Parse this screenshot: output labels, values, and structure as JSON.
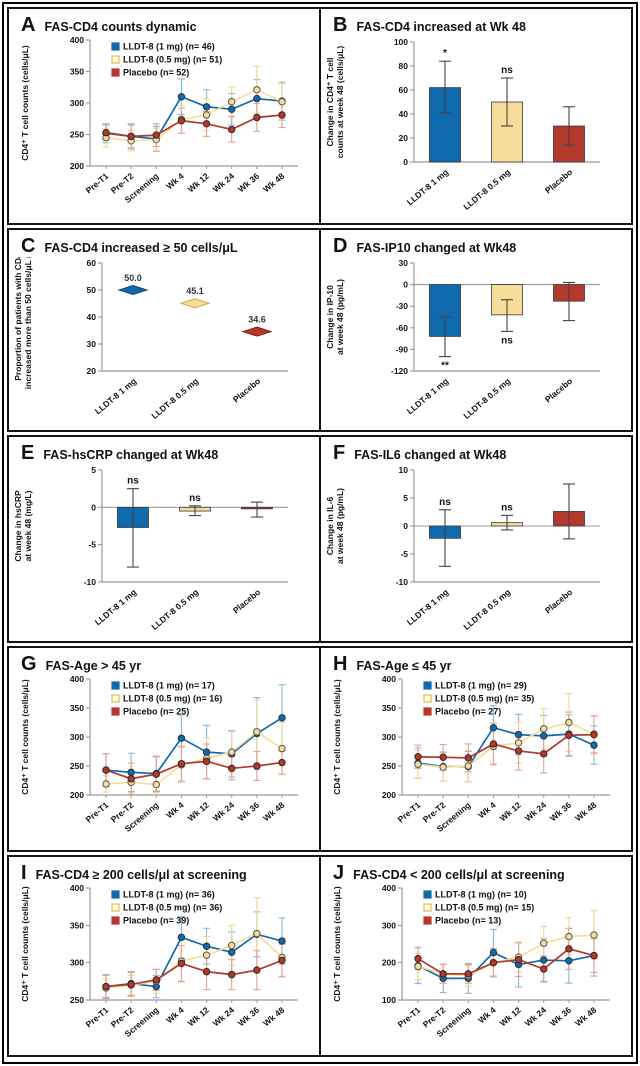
{
  "panels": [
    {
      "letter": "A",
      "title": "FAS-CD4 counts dynamic"
    },
    {
      "letter": "B",
      "title": "FAS-CD4 increased at Wk 48"
    },
    {
      "letter": "C",
      "title": "FAS-CD4 increased ≥ 50 cells/μL"
    },
    {
      "letter": "D",
      "title": "FAS-IP10 changed at Wk48"
    },
    {
      "letter": "E",
      "title": "FAS-hsCRP changed at Wk48"
    },
    {
      "letter": "F",
      "title": "FAS-IL6 changed at Wk48"
    },
    {
      "letter": "G",
      "title": "FAS-Age > 45 yr"
    },
    {
      "letter": "H",
      "title": "FAS-Age ≤ 45 yr"
    },
    {
      "letter": "I",
      "title": "FAS-CD4 ≥ 200 cells/μl at screening"
    },
    {
      "letter": "J",
      "title": "FAS-CD4 < 200 cells/μl at screening"
    }
  ],
  "colors": {
    "blue": "#0f6bae",
    "yellow_fill": "#f6dd9a",
    "yellow_line": "#f8dd96",
    "red": "#b2392c",
    "axis": "#999999",
    "error_dark": "#444444"
  },
  "chart_data": [
    {
      "panel": "A",
      "type": "line",
      "x": [
        "Pre-T1",
        "Pre-T2",
        "Screening",
        "Wk 4",
        "Wk 12",
        "Wk 24",
        "Wk 36",
        "Wk 48"
      ],
      "ylabel": "CD4⁺ T cell counts (cells/μL)",
      "ylim": [
        200,
        400
      ],
      "yticks": [
        200,
        250,
        300,
        350,
        400
      ],
      "series": [
        {
          "key": "lldt8-1mg",
          "legend": "LLDT-8 (1 mg) (n= 46)",
          "color": "#0f6bae",
          "err_color": "#86b8dc",
          "marker_fill": "#0f6bae",
          "marker_stroke": "#26323d",
          "legend_fill": "#0f6bae",
          "legend_stroke": "#0f6bae",
          "values": [
            252,
            247,
            243,
            310,
            294,
            290,
            307,
            303
          ],
          "err": [
            15,
            20,
            20,
            28,
            27,
            25,
            30,
            30
          ]
        },
        {
          "key": "lldt8-05mg",
          "legend": "LLDT-8 (0.5 mg) (n= 51)",
          "color": "#f8dd96",
          "err_color": "#f3d68c",
          "marker_fill": "#f6dd9a",
          "marker_stroke": "#555555",
          "legend_fill": "#fffdf0",
          "legend_stroke": "#e3bb4a",
          "values": [
            245,
            240,
            242,
            274,
            281,
            302,
            321,
            302
          ],
          "err": [
            15,
            16,
            18,
            22,
            25,
            23,
            37,
            28
          ]
        },
        {
          "key": "placebo",
          "legend": "Placebo (n= 52)",
          "color": "#b2392c",
          "err_color": "#dfa096",
          "marker_fill": "#b2392c",
          "marker_stroke": "#3d2420",
          "legend_fill": "#b2392c",
          "legend_stroke": "#b2392c",
          "values": [
            253,
            247,
            249,
            272,
            267,
            258,
            277,
            281
          ],
          "err": [
            12,
            18,
            18,
            20,
            20,
            20,
            22,
            20
          ]
        }
      ]
    },
    {
      "panel": "B",
      "type": "bar",
      "categories": [
        "LLDT-8 1 mg",
        "LLDT-8 0.5 mg",
        "Placebo"
      ],
      "ylabel": "Change in CD4⁺ T cell\ncounts at week 48 (cells/μL)",
      "ylim": [
        0,
        100
      ],
      "yticks": [
        0,
        20,
        40,
        60,
        80,
        100
      ],
      "values": [
        62,
        50,
        30
      ],
      "err_lo": [
        41,
        30,
        14
      ],
      "err_hi": [
        84,
        70,
        46
      ],
      "ann": [
        "*",
        "ns",
        ""
      ],
      "ann_pos": "above",
      "bar_colors": [
        "#0f6bae",
        "#f6dd9a",
        "#b2392c"
      ]
    },
    {
      "panel": "C",
      "type": "points",
      "categories": [
        "LLDT-8 1 mg",
        "LLDT-8 0.5 mg",
        "Placebo"
      ],
      "ylabel": "Proportion of patients with CD4\nincreased more than 50 cells/μL (%)",
      "ylim": [
        20,
        60
      ],
      "yticks": [
        20,
        30,
        40,
        50,
        60
      ],
      "values": [
        50.0,
        45.1,
        34.6
      ],
      "point_labels": [
        "50.0",
        "45.1",
        "34.6"
      ],
      "point_colors": [
        "#0f6bae",
        "#f6dd9a",
        "#b2392c"
      ],
      "point_strokes": [
        "#0a4a78",
        "#cfa83d",
        "#801f14"
      ]
    },
    {
      "panel": "D",
      "type": "bar",
      "categories": [
        "LLDT-8 1 mg",
        "LLDT-8 0.5 mg",
        "Placebo"
      ],
      "ylabel": "Change in IP-10\nat week 48 (pg/mL)",
      "ylim": [
        -120,
        30
      ],
      "yticks": [
        30,
        0,
        -30,
        -60,
        -90,
        -120
      ],
      "values": [
        -72,
        -42,
        -23
      ],
      "err_lo": [
        -100,
        -65,
        -50
      ],
      "err_hi": [
        -45,
        -21,
        3
      ],
      "ann": [
        "**",
        "ns",
        ""
      ],
      "ann_pos": "below",
      "bar_colors": [
        "#0f6bae",
        "#f6dd9a",
        "#b2392c"
      ]
    },
    {
      "panel": "E",
      "type": "bar",
      "categories": [
        "LLDT-8 1 mg",
        "LLDT-8 0.5 mg",
        "Placebo"
      ],
      "ylabel": "Change in hsCRP\nat week 48 (mg/L)",
      "ylim": [
        -10,
        5
      ],
      "yticks": [
        5,
        0,
        -5,
        -10
      ],
      "values": [
        -2.7,
        -0.5,
        -0.2
      ],
      "err_lo": [
        -8,
        -1.1,
        -1.3
      ],
      "err_hi": [
        2.5,
        0.2,
        0.7
      ],
      "ann": [
        "ns",
        "ns",
        ""
      ],
      "ann_pos": "above",
      "bar_colors": [
        "#0f6bae",
        "#f6dd9a",
        "#b2392c"
      ]
    },
    {
      "panel": "F",
      "type": "bar",
      "categories": [
        "LLDT-8 1 mg",
        "LLDT-8 0.5 mg",
        "Placebo"
      ],
      "ylabel": "Change in IL-6\nat week 48 (pg/mL)",
      "ylim": [
        -10,
        10
      ],
      "yticks": [
        10,
        5,
        0,
        -5,
        -10
      ],
      "values": [
        -2.2,
        0.6,
        2.6
      ],
      "err_lo": [
        -7.2,
        -0.7,
        -2.3
      ],
      "err_hi": [
        2.9,
        1.9,
        7.5
      ],
      "ann": [
        "ns",
        "ns",
        ""
      ],
      "ann_pos": "above",
      "bar_colors": [
        "#0f6bae",
        "#f6dd9a",
        "#b2392c"
      ]
    },
    {
      "panel": "G",
      "type": "line",
      "x": [
        "Pre-T1",
        "Pre-T2",
        "Screening",
        "Wk 4",
        "Wk 12",
        "Wk 24",
        "Wk 36",
        "Wk 48"
      ],
      "ylabel": "CD4⁺ T cell counts (cells/μL)",
      "ylim": [
        200,
        400
      ],
      "yticks": [
        200,
        250,
        300,
        350,
        400
      ],
      "series": [
        {
          "key": "lldt8-1mg",
          "legend": "LLDT-8 (1 mg) (n= 17)",
          "color": "#0f6bae",
          "err_color": "#86b8dc",
          "marker_fill": "#0f6bae",
          "marker_stroke": "#26323d",
          "legend_fill": "#0f6bae",
          "legend_stroke": "#0f6bae",
          "values": [
            243,
            239,
            237,
            298,
            274,
            271,
            306,
            333
          ],
          "err": [
            28,
            33,
            30,
            40,
            46,
            40,
            62,
            57
          ]
        },
        {
          "key": "lldt8-05mg",
          "legend": "LLDT-8 (0.5 mg) (n= 16)",
          "color": "#f8dd96",
          "err_color": "#f3d68c",
          "marker_fill": "#f6dd9a",
          "marker_stroke": "#555555",
          "legend_fill": "#fffdf0",
          "legend_stroke": "#e3bb4a",
          "values": [
            219,
            222,
            218,
            252,
            263,
            274,
            309,
            280
          ],
          "err": [
            14,
            18,
            14,
            30,
            35,
            35,
            55,
            45
          ]
        },
        {
          "key": "placebo",
          "legend": "Placebo (n= 25)",
          "color": "#b2392c",
          "err_color": "#dfa096",
          "marker_fill": "#b2392c",
          "marker_stroke": "#3d2420",
          "legend_fill": "#b2392c",
          "legend_stroke": "#b2392c",
          "values": [
            243,
            228,
            236,
            254,
            258,
            246,
            250,
            256
          ],
          "err": [
            28,
            27,
            30,
            30,
            30,
            20,
            25,
            20
          ]
        }
      ]
    },
    {
      "panel": "H",
      "type": "line",
      "x": [
        "Pre-T1",
        "Pre-T2",
        "Screening",
        "Wk 4",
        "Wk 12",
        "Wk 24",
        "Wk 36",
        "Wk 48"
      ],
      "ylabel": "CD4⁺ T cell counts (cells/μL)",
      "ylim": [
        200,
        400
      ],
      "yticks": [
        200,
        250,
        300,
        350,
        400
      ],
      "series": [
        {
          "key": "lldt8-1mg",
          "legend": "LLDT-8 (1 mg) (n= 29)",
          "color": "#0f6bae",
          "err_color": "#86b8dc",
          "marker_fill": "#0f6bae",
          "marker_stroke": "#26323d",
          "legend_fill": "#0f6bae",
          "legend_stroke": "#0f6bae",
          "values": [
            255,
            249,
            249,
            316,
            304,
            302,
            305,
            286
          ],
          "err": [
            26,
            25,
            26,
            38,
            35,
            35,
            38,
            33
          ]
        },
        {
          "key": "lldt8-05mg",
          "legend": "LLDT-8 (0.5 mg) (n= 35)",
          "color": "#f8dd96",
          "err_color": "#f3d68c",
          "marker_fill": "#f6dd9a",
          "marker_stroke": "#555555",
          "legend_fill": "#fffdf0",
          "legend_stroke": "#e3bb4a",
          "values": [
            253,
            248,
            250,
            284,
            290,
            314,
            325,
            305
          ],
          "err": [
            24,
            24,
            27,
            30,
            35,
            35,
            50,
            32
          ]
        },
        {
          "key": "placebo",
          "legend": "Placebo (n= 27)",
          "color": "#b2392c",
          "err_color": "#dfa096",
          "marker_fill": "#b2392c",
          "marker_stroke": "#3d2420",
          "legend_fill": "#b2392c",
          "legend_stroke": "#b2392c",
          "values": [
            266,
            265,
            264,
            288,
            276,
            271,
            303,
            304
          ],
          "err": [
            20,
            22,
            24,
            36,
            33,
            33,
            35,
            32
          ]
        }
      ]
    },
    {
      "panel": "I",
      "type": "line",
      "x": [
        "Pre-T1",
        "Pre-T2",
        "Screening",
        "Wk 4",
        "Wk 12",
        "Wk 24",
        "Wk 36",
        "Wk 48"
      ],
      "ylabel": "CD4⁺ T cell counts (cells/μL)",
      "ylim": [
        250,
        400
      ],
      "yticks": [
        250,
        300,
        350,
        400
      ],
      "series": [
        {
          "key": "lldt8-1mg",
          "legend": "LLDT-8 (1 mg) (n= 36)",
          "color": "#0f6bae",
          "err_color": "#86b8dc",
          "marker_fill": "#0f6bae",
          "marker_stroke": "#26323d",
          "legend_fill": "#0f6bae",
          "legend_stroke": "#0f6bae",
          "values": [
            268,
            272,
            268,
            334,
            322,
            314,
            338,
            329
          ],
          "err": [
            16,
            16,
            15,
            28,
            24,
            27,
            30,
            31
          ]
        },
        {
          "key": "lldt8-05mg",
          "legend": "LLDT-8 (0.5 mg) (n= 36)",
          "color": "#f8dd96",
          "err_color": "#f3d68c",
          "marker_fill": "#f6dd9a",
          "marker_stroke": "#555555",
          "legend_fill": "#fffdf0",
          "legend_stroke": "#e3bb4a",
          "values": [
            266,
            270,
            275,
            302,
            310,
            323,
            339,
            307
          ],
          "err": [
            12,
            13,
            16,
            28,
            25,
            27,
            48,
            25
          ]
        },
        {
          "key": "placebo",
          "legend": "Placebo (n= 39)",
          "color": "#b2392c",
          "err_color": "#dfa096",
          "marker_fill": "#b2392c",
          "marker_stroke": "#3d2420",
          "legend_fill": "#b2392c",
          "legend_stroke": "#b2392c",
          "values": [
            268,
            271,
            277,
            299,
            288,
            284,
            290,
            303
          ],
          "err": [
            15,
            16,
            14,
            24,
            24,
            20,
            26,
            22
          ]
        }
      ]
    },
    {
      "panel": "J",
      "type": "line",
      "x": [
        "Pre-T1",
        "Pre-T2",
        "Screening",
        "Wk 4",
        "Wk 12",
        "Wk 24",
        "Wk 36",
        "Wk 48"
      ],
      "ylabel": "CD4⁺ T cell counts (cells/μL)",
      "ylim": [
        100,
        400
      ],
      "yticks": [
        100,
        200,
        300,
        400
      ],
      "series": [
        {
          "key": "lldt8-1mg",
          "legend": "LLDT-8 (1 mg) (n= 10)",
          "color": "#0f6bae",
          "err_color": "#86b8dc",
          "marker_fill": "#0f6bae",
          "marker_stroke": "#26323d",
          "legend_fill": "#0f6bae",
          "legend_stroke": "#0f6bae",
          "values": [
            192,
            158,
            158,
            227,
            195,
            207,
            205,
            219
          ],
          "err": [
            48,
            38,
            40,
            62,
            60,
            57,
            60,
            55
          ]
        },
        {
          "key": "lldt8-05mg",
          "legend": "LLDT-8 (0.5 mg) (n= 15)",
          "color": "#f8dd96",
          "err_color": "#f3d68c",
          "marker_fill": "#f6dd9a",
          "marker_stroke": "#555555",
          "legend_fill": "#fffdf0",
          "legend_stroke": "#e3bb4a",
          "values": [
            190,
            170,
            165,
            200,
            215,
            252,
            270,
            274
          ],
          "err": [
            35,
            25,
            28,
            35,
            40,
            45,
            50,
            66
          ]
        },
        {
          "key": "placebo",
          "legend": "Placebo (n= 13)",
          "color": "#b2392c",
          "err_color": "#dfa096",
          "marker_fill": "#b2392c",
          "marker_stroke": "#3d2420",
          "legend_fill": "#b2392c",
          "legend_stroke": "#b2392c",
          "values": [
            211,
            170,
            170,
            200,
            208,
            183,
            237,
            219
          ],
          "err": [
            30,
            25,
            25,
            38,
            45,
            35,
            55,
            45
          ]
        }
      ]
    }
  ]
}
